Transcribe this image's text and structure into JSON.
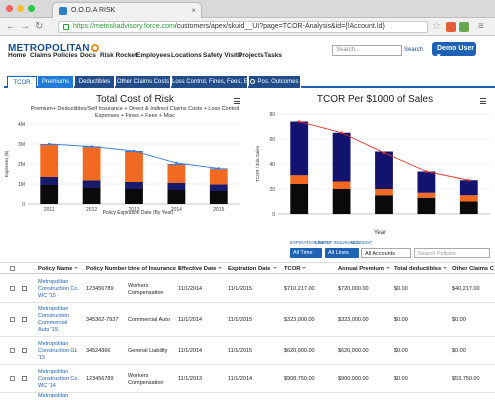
{
  "browser": {
    "tab_title": "O.O.D.A RISK",
    "url_host": "https://metriskadvisory.force.com",
    "url_path": "/customers/apex/skuid__UI?page=TCOR-Analysis&id={!Account.Id}"
  },
  "header": {
    "logo": "METROPOLITAN",
    "search_placeholder": "Search...",
    "search_button": "Search",
    "user_button": "Demo User ▾"
  },
  "nav": [
    "Home",
    "Claims",
    "Policies",
    "Docs",
    "Risk Rocket",
    "Employees",
    "Locations",
    "Safety Visits",
    "Projects",
    "Tasks"
  ],
  "tabs": [
    "TCOR",
    "Premiums",
    "Deductibles",
    "Other Claims Costs",
    "Loss Control, Fines, Fees, Etc.",
    "Pos. Outcomes"
  ],
  "chart_left": {
    "title": "Total Cost of Risk",
    "subtitle_1": "Premium+ Deductibles/Self Insurance + Direct & Indirect Claims Costs + Loss Control",
    "subtitle_2": "Expenses + Fines + Fees + Misc",
    "ylabel": "Expenses ($)",
    "xlabel": "Policy Expiration Date (By Year)"
  },
  "chart_right": {
    "title": "TCOR Per $1000 of Sales",
    "ylabel": "TCOR / $1k Sales",
    "xlabel": "Year"
  },
  "chart_data": [
    {
      "type": "bar",
      "title": "Total Cost of Risk",
      "categories": [
        "2011",
        "2012",
        "2013",
        "2014",
        "2015"
      ],
      "ylim": [
        0,
        4000000
      ],
      "yticks": [
        "0",
        "1M",
        "2M",
        "3M",
        "4M"
      ],
      "series": [
        {
          "values": [
            950000,
            800000,
            750000,
            700000,
            650000
          ]
        },
        {
          "values": [
            400000,
            380000,
            350000,
            350000,
            330000
          ]
        },
        {
          "values": [
            1600000,
            1650000,
            1500000,
            900000,
            750000
          ]
        },
        {
          "values": [
            50000,
            50000,
            50000,
            50000,
            50000
          ]
        }
      ],
      "line": [
        3000000,
        2870000,
        2650000,
        2050000,
        1780000
      ],
      "colors": [
        "#0a0a0a",
        "#1a1a6b",
        "#f26a22",
        "#3a7bd5"
      ]
    },
    {
      "type": "bar",
      "title": "TCOR Per $1000 of Sales",
      "categories": [
        "2011",
        "2012",
        "2013",
        "2014",
        "2015"
      ],
      "ylim": [
        0,
        80
      ],
      "yticks": [
        "0",
        "20",
        "40",
        "60",
        "80"
      ],
      "series": [
        {
          "values": [
            24,
            20,
            15,
            13,
            10
          ]
        },
        {
          "values": [
            7,
            6,
            5,
            4,
            5
          ]
        },
        {
          "values": [
            43,
            39,
            30,
            17,
            12
          ]
        }
      ],
      "line": [
        74,
        65,
        49,
        34,
        27
      ],
      "colors": [
        "#0a0a0a",
        "#f26a22",
        "#12136e",
        "#e0302a"
      ]
    }
  ],
  "filters": {
    "label_1": "EXPIRATION DATE",
    "label_2": "LINE OF INSURANCE",
    "label_3": "ACCOUNT",
    "all_time": "All Time",
    "all_lines": "All Lines",
    "all_accounts": "All Accounts",
    "search_placeholder": "Search Policies"
  },
  "table": {
    "columns": [
      "Policy Name",
      "Policy Number",
      "Line of Insurance",
      "Effective Date",
      "Expiration Date",
      "TCOR",
      "Annual Premium",
      "Total deductibles",
      "Other Claims C"
    ],
    "rows": [
      {
        "name": "Metropolitan Construction Co. WC '15",
        "number": "123456789",
        "line": "Workers Compensation",
        "effective": "11/1/2014",
        "expiration": "11/1/2015",
        "tcor": "$710,217.00",
        "premium": "$720,000.00",
        "deductibles": "$0.00",
        "other": "$40,217.00"
      },
      {
        "name": "Metropolitan Construction Commercial Auto '15",
        "number": "345362-7937",
        "line": "Commercial Auto",
        "effective": "11/1/2014",
        "expiration": "11/1/2015",
        "tcor": "$323,000.00",
        "premium": "$323,000.00",
        "deductibles": "$0.00",
        "other": "$0.00"
      },
      {
        "name": "Metropolitan Construction GL '15",
        "number": "34524366",
        "line": "General Liability",
        "effective": "11/1/2014",
        "expiration": "11/1/2015",
        "tcor": "$620,000.00",
        "premium": "$620,000.00",
        "deductibles": "$0.00",
        "other": "$0.00"
      },
      {
        "name": "Metropolitan Construction Co. WC '14",
        "number": "123456789",
        "line": "Workers Compensation",
        "effective": "11/1/2013",
        "expiration": "11/1/2014",
        "tcor": "$908,750.00",
        "premium": "$900,000.00",
        "deductibles": "$0.00",
        "other": "$53,750.00"
      },
      {
        "name": "Metropolitan",
        "number": "",
        "line": "",
        "effective": "",
        "expiration": "",
        "tcor": "",
        "premium": "",
        "deductibles": "",
        "other": ""
      }
    ]
  }
}
